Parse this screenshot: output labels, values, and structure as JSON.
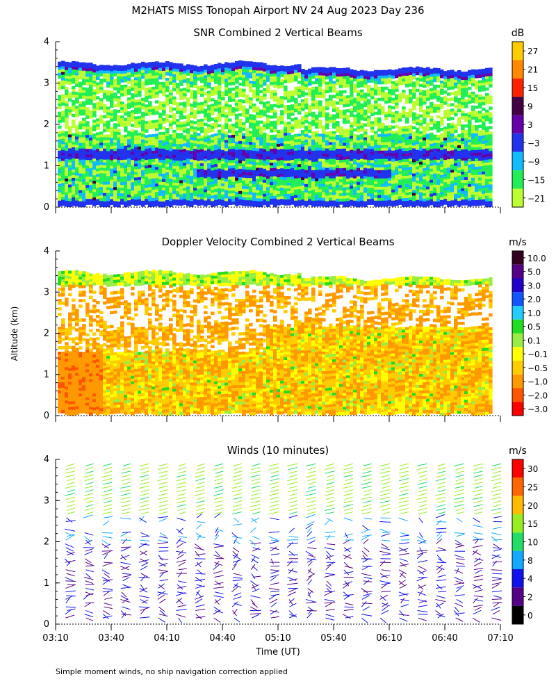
{
  "title": "M2HATS MISS Tonopah Airport NV  24 Aug 2023 Day 236",
  "ylabel": "Altitude (km)",
  "xlabel": "Time (UT)",
  "footnote": "Simple moment winds, no ship navigation correction applied",
  "chart_data": [
    {
      "type": "heatmap",
      "title": "SNR Combined 2 Vertical Beams",
      "ylim": [
        0,
        4
      ],
      "yticks": [
        "0",
        "1",
        "2",
        "3",
        "4"
      ],
      "xlim": [
        0,
        240
      ],
      "colorbar": {
        "unit": "dB",
        "labels": [
          "27",
          "21",
          "15",
          "9",
          "3",
          "−3",
          "−9",
          "−15",
          "−21"
        ],
        "colors": [
          "#ffcc00",
          "#ff8800",
          "#ff2200",
          "#440044",
          "#6600aa",
          "#2233ee",
          "#11bbff",
          "#22ee55",
          "#bbff33"
        ]
      },
      "top_km": 3.5,
      "features": [
        {
          "name": "cloud-top band",
          "km": 3.2,
          "snr_db": -3
        },
        {
          "name": "mid band",
          "km": 1.3,
          "snr_db": -3
        },
        {
          "name": "low band",
          "km": 0.9,
          "snr_db": -3
        }
      ]
    },
    {
      "type": "heatmap",
      "title": "Doppler Velocity Combined 2 Vertical Beams",
      "ylim": [
        0,
        4
      ],
      "yticks": [
        "0",
        "1",
        "2",
        "3",
        "4"
      ],
      "xlim": [
        0,
        240
      ],
      "colorbar": {
        "unit": "m/s",
        "labels": [
          "10.0",
          "5.0",
          "3.0",
          "2.0",
          "1.0",
          "0.5",
          "0.1",
          "−0.1",
          "−0.5",
          "−1.0",
          "−2.0",
          "−3.0"
        ],
        "colors": [
          "#330022",
          "#550088",
          "#2200cc",
          "#1155ff",
          "#22ccff",
          "#22dd22",
          "#99ee44",
          "#ffff00",
          "#ffcc00",
          "#ff9900",
          "#ff5500",
          "#ff0000"
        ]
      },
      "top_km": 3.5
    },
    {
      "type": "scatter",
      "title": "Winds (10 minutes)",
      "ylim": [
        0,
        4
      ],
      "yticks": [
        "0",
        "1",
        "2",
        "3",
        "4"
      ],
      "xlim": [
        0,
        240
      ],
      "categories": [
        "03:10",
        "03:40",
        "04:10",
        "04:40",
        "05:10",
        "05:40",
        "06:10",
        "06:40",
        "07:10"
      ],
      "interval_min": 10,
      "colorbar": {
        "unit": "m/s",
        "labels": [
          "30",
          "25",
          "20",
          "15",
          "10",
          "8",
          "4",
          "2",
          "0"
        ],
        "colors": [
          "#ff0000",
          "#ff6600",
          "#ffbb00",
          "#99ee22",
          "#22dd66",
          "#11aaff",
          "#1111ee",
          "#550088",
          "#000000"
        ]
      }
    }
  ]
}
